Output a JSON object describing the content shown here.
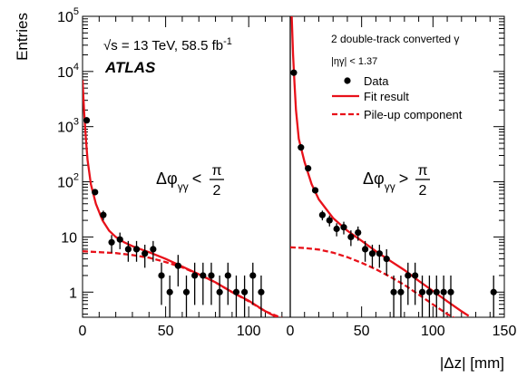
{
  "chart_data": {
    "type": "scatter",
    "title": "",
    "xlabel": "|Δz| [mm]",
    "ylabel": "Entries",
    "y_scale": "log",
    "ylim": [
      0.35,
      100000
    ],
    "y_ticks": [
      {
        "value": 1,
        "base": "1",
        "exp": ""
      },
      {
        "value": 10,
        "base": "10",
        "exp": ""
      },
      {
        "value": 100,
        "base": "10",
        "exp": "2"
      },
      {
        "value": 1000,
        "base": "10",
        "exp": "3"
      },
      {
        "value": 10000,
        "base": "10",
        "exp": "4"
      },
      {
        "value": 100000,
        "base": "10",
        "exp": "5"
      }
    ],
    "grid": false,
    "legend_position": "top-right",
    "annotations": {
      "energy": "√s = 13 TeV, 58.5 fb",
      "energy_exp": "-1",
      "experiment": "ATLAS",
      "selection": "2 double-track converted γ",
      "eta_cut": "|ηγ| < 1.37"
    },
    "panels": [
      {
        "name": "left",
        "label": "Δφγγ < π/2",
        "label_main": "Δφ",
        "label_sub": "γγ",
        "label_op": "<",
        "label_num": "π",
        "label_den": "2",
        "xlim": [
          0,
          125
        ],
        "x_ticks": [
          0,
          50,
          100
        ],
        "data": {
          "x": [
            2.5,
            7.5,
            12.5,
            17.5,
            22.5,
            27.5,
            32.5,
            37.5,
            42.5,
            47.5,
            52.5,
            57.5,
            62.5,
            67.5,
            72.5,
            77.5,
            82.5,
            87.5,
            92.5,
            97.5,
            102.5,
            107.5
          ],
          "y": [
            1300,
            65,
            25,
            8,
            9,
            6,
            6,
            5,
            6,
            2,
            1,
            3,
            1,
            2,
            2,
            2,
            1,
            2,
            1,
            1,
            2,
            1
          ]
        },
        "fit_result": {
          "x": [
            0,
            1,
            2,
            3,
            5,
            8,
            12,
            16,
            20,
            25,
            30,
            35,
            40,
            50,
            60,
            70,
            80,
            90,
            100,
            110,
            117
          ],
          "y": [
            7000,
            1800,
            600,
            250,
            90,
            40,
            20,
            13,
            10,
            8,
            6.8,
            6.0,
            5.3,
            4.0,
            2.9,
            2.1,
            1.5,
            1.0,
            0.7,
            0.45,
            0.35
          ]
        },
        "pileup": {
          "x": [
            0,
            10,
            20,
            30,
            40,
            50,
            60,
            70,
            80,
            90,
            100,
            110,
            120
          ],
          "y": [
            5.5,
            5.3,
            5.1,
            4.7,
            4.2,
            3.5,
            2.8,
            2.1,
            1.5,
            1.0,
            0.68,
            0.45,
            0.34
          ]
        }
      },
      {
        "name": "right",
        "label": "Δφγγ > π/2",
        "label_main": "Δφ",
        "label_sub": "γγ",
        "label_op": ">",
        "label_num": "π",
        "label_den": "2",
        "xlim": [
          0,
          150
        ],
        "x_ticks": [
          0,
          50,
          100,
          150
        ],
        "data": {
          "x": [
            2.5,
            7.5,
            12.5,
            17.5,
            22.5,
            27.5,
            32.5,
            37.5,
            42.5,
            47.5,
            52.5,
            57.5,
            62.5,
            67.5,
            72.5,
            77.5,
            82.5,
            87.5,
            92.5,
            97.5,
            102.5,
            107.5,
            112.5,
            142.5
          ],
          "y": [
            9500,
            420,
            175,
            70,
            25,
            20,
            14,
            15,
            10,
            12,
            6,
            5,
            5,
            4,
            1,
            1,
            2,
            2,
            1,
            1,
            1,
            1,
            1,
            1
          ]
        },
        "fit_result": {
          "x": [
            1,
            2,
            3,
            4,
            6,
            10,
            15,
            20,
            30,
            40,
            50,
            60,
            70,
            80,
            90,
            100,
            110,
            120,
            125
          ],
          "y": [
            100000,
            20000,
            6000,
            2000,
            600,
            230,
            90,
            48,
            22,
            13,
            8.5,
            5.5,
            3.7,
            2.5,
            1.6,
            1.05,
            0.68,
            0.45,
            0.37
          ]
        },
        "pileup": {
          "x": [
            0,
            10,
            20,
            30,
            40,
            50,
            60,
            70,
            80,
            90,
            100,
            110,
            115
          ],
          "y": [
            6.5,
            6.3,
            5.9,
            5.2,
            4.3,
            3.4,
            2.6,
            1.9,
            1.35,
            0.9,
            0.6,
            0.4,
            0.34
          ]
        }
      }
    ],
    "series": [
      {
        "name": "Data",
        "marker": "circle",
        "color": "#000000"
      },
      {
        "name": "Fit result",
        "line": "solid",
        "color": "#e8111a"
      },
      {
        "name": "Pile-up component",
        "line": "dashed",
        "color": "#e8111a"
      }
    ]
  }
}
